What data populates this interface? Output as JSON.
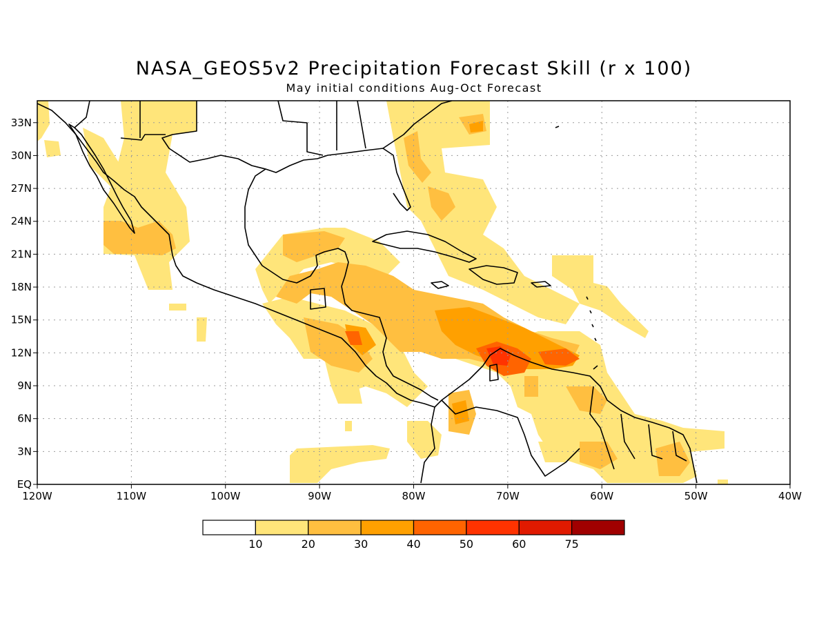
{
  "title": "NASA_GEOS5v2 Precipitation Forecast Skill (r x 100)",
  "subtitle": "May initial conditions  Aug-Oct Forecast",
  "map": {
    "lon_range": [
      -120,
      -40
    ],
    "lat_range": [
      0,
      35
    ],
    "lon_ticks": [
      {
        "value": -120,
        "label": "120W"
      },
      {
        "value": -110,
        "label": "110W"
      },
      {
        "value": -100,
        "label": "100W"
      },
      {
        "value": -90,
        "label": "90W"
      },
      {
        "value": -80,
        "label": "80W"
      },
      {
        "value": -70,
        "label": "70W"
      },
      {
        "value": -60,
        "label": "60W"
      },
      {
        "value": -50,
        "label": "50W"
      },
      {
        "value": -40,
        "label": "40W"
      }
    ],
    "lat_ticks": [
      {
        "value": 0,
        "label": "EQ"
      },
      {
        "value": 3,
        "label": "3N"
      },
      {
        "value": 6,
        "label": "6N"
      },
      {
        "value": 9,
        "label": "9N"
      },
      {
        "value": 12,
        "label": "12N"
      },
      {
        "value": 15,
        "label": "15N"
      },
      {
        "value": 18,
        "label": "18N"
      },
      {
        "value": 21,
        "label": "21N"
      },
      {
        "value": 24,
        "label": "24N"
      },
      {
        "value": 27,
        "label": "27N"
      },
      {
        "value": 30,
        "label": "30N"
      },
      {
        "value": 33,
        "label": "33N"
      }
    ],
    "gridlines": true
  },
  "colorbar": {
    "colors": [
      "#ffffff",
      "#ffe57a",
      "#ffbf40",
      "#ffa000",
      "#ff6400",
      "#ff3300",
      "#e01a00",
      "#a00000"
    ],
    "labels": [
      "10",
      "20",
      "30",
      "40",
      "50",
      "60",
      "75"
    ]
  },
  "fill_colors": {
    "light": "#ffe57a",
    "medium": "#ffbf40",
    "orange": "#ffa000",
    "dark_orange": "#ff6400",
    "red": "#ff3300"
  }
}
